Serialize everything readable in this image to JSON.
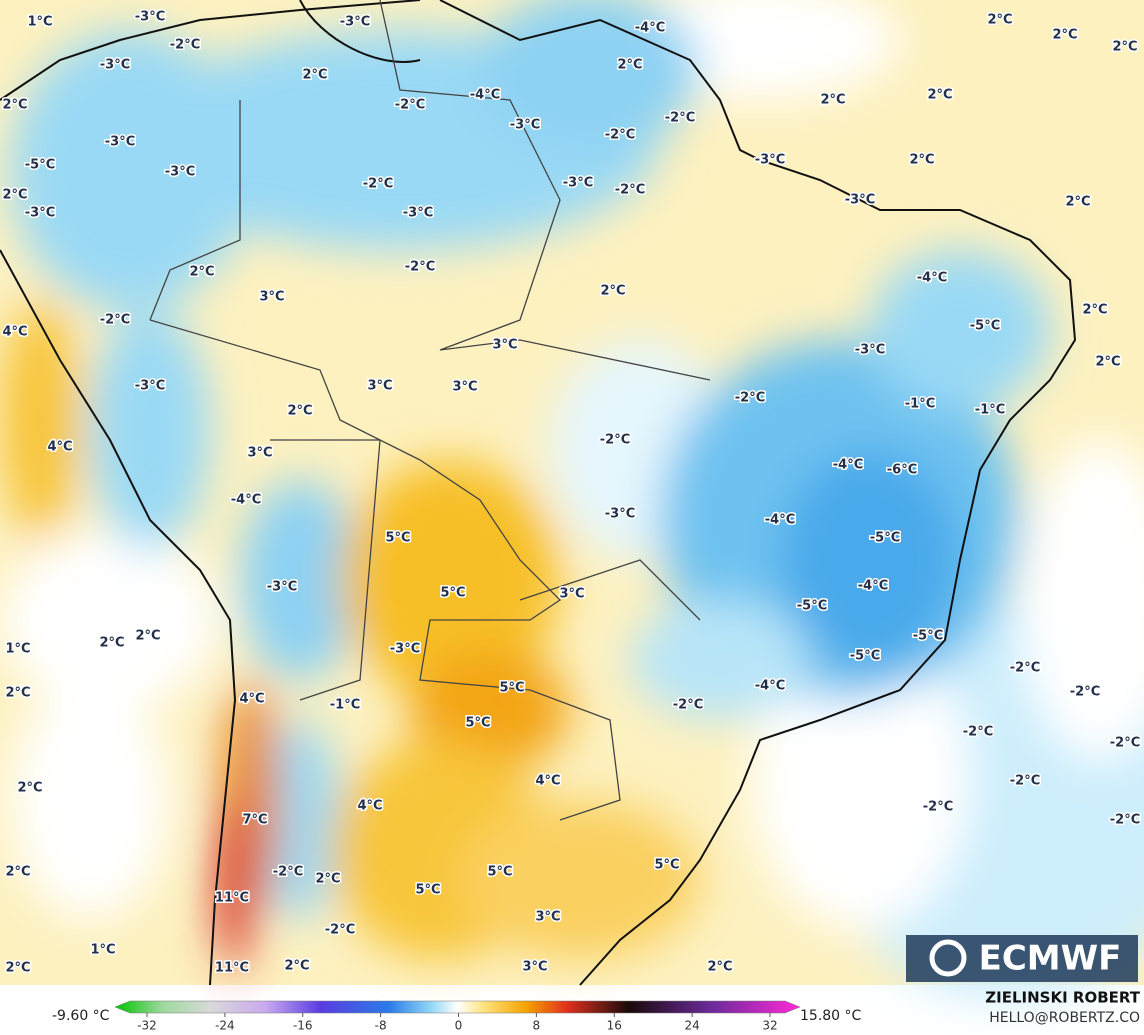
{
  "map_labels": [
    "1°C",
    "-3°C",
    "-2°C",
    "-3°C",
    "-3°C",
    "2°C",
    "-2°C",
    "-4°C",
    "-3°C",
    "-2°C",
    "-2°C",
    "2°C",
    "-4°C",
    "2°C",
    "2°C",
    "2°C",
    "2°C",
    "2°C",
    "2°C",
    "2°C",
    "2°C",
    "-3°C",
    "-5°C",
    "-3°C",
    "2°C",
    "-3°C",
    "-2°C",
    "-3°C",
    "-3°C",
    "-2°C",
    "-3°C",
    "-3°C",
    "2°C",
    "-2°C",
    "3°C",
    "2°C",
    "-4°C",
    "-5°C",
    "2°C",
    "2°C",
    "-2°C",
    "4°C",
    "3°C",
    "-3°C",
    "-3°C",
    "3°C",
    "3°C",
    "2°C",
    "-2°C",
    "-1°C",
    "-1°C",
    "4°C",
    "3°C",
    "-2°C",
    "-4°C",
    "-6°C",
    "-4°C",
    "-3°C",
    "-4°C",
    "5°C",
    "-5°C",
    "3°C",
    "5°C",
    "-3°C",
    "-4°C",
    "-5°C",
    "1°C",
    "2°C",
    "2°C",
    "-3°C",
    "-5°C",
    "-5°C",
    "-2°C",
    "5°C",
    "-4°C",
    "2°C",
    "-2°C",
    "4°C",
    "-1°C",
    "5°C",
    "-2°C",
    "-2°C",
    "-2°C",
    "4°C",
    "2°C",
    "-2°C",
    "4°C",
    "-2°C",
    "-2°C",
    "7°C",
    "2°C",
    "-2°C",
    "2°C",
    "5°C",
    "5°C",
    "5°C",
    "11°C",
    "3°C",
    "1°C",
    "-2°C",
    "2°C",
    "11°C",
    "2°C",
    "3°C",
    "2°C"
  ],
  "logo": "ECMWF",
  "author": "ZIELINSKI ROBERT",
  "contact": "HELLO@ROBERTZ.CO",
  "colorbar": {
    "min_label": "-9.60 °C",
    "max_label": "15.80 °C",
    "ticks": [
      -32,
      -24,
      -16,
      -8,
      0,
      8,
      16,
      24,
      32
    ]
  }
}
